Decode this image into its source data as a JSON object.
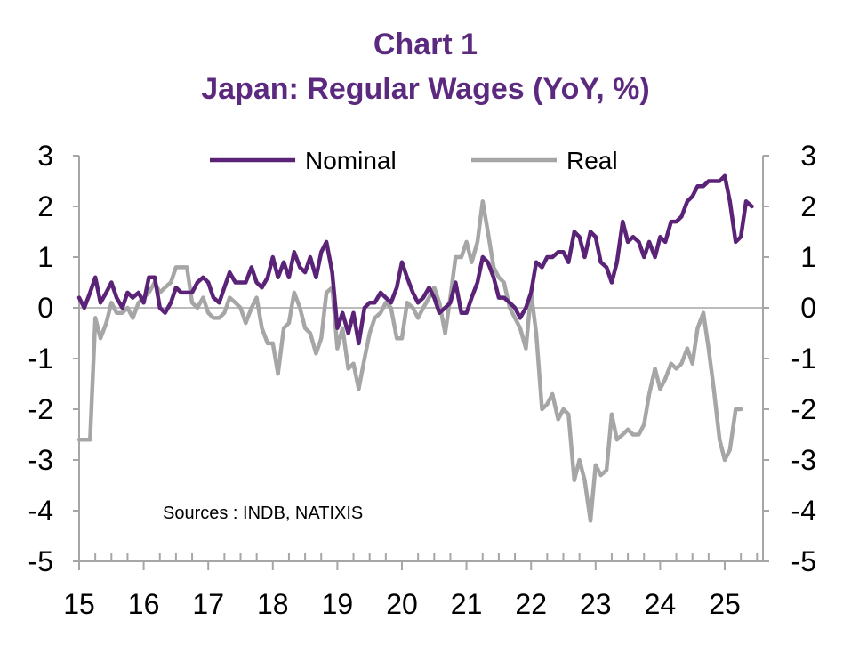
{
  "title": "Chart 1",
  "subtitle": "Japan: Regular Wages (YoY, %)",
  "source": "Sources : INDB, NATIXIS",
  "chart_data": {
    "type": "line",
    "title": "Chart 1",
    "subtitle": "Japan: Regular Wages (YoY, %)",
    "xlabel": "",
    "ylabel": "",
    "xlim": [
      2015.0,
      2025.5
    ],
    "ylim": [
      -5,
      3
    ],
    "yticks": [
      3,
      2,
      1,
      0,
      -1,
      -2,
      -3,
      -4,
      -5
    ],
    "xticks": [
      {
        "value": 2015,
        "label": "15"
      },
      {
        "value": 2016,
        "label": "16"
      },
      {
        "value": 2017,
        "label": "17"
      },
      {
        "value": 2018,
        "label": "18"
      },
      {
        "value": 2019,
        "label": "19"
      },
      {
        "value": 2020,
        "label": "20"
      },
      {
        "value": 2021,
        "label": "21"
      },
      {
        "value": 2022,
        "label": "22"
      },
      {
        "value": 2023,
        "label": "23"
      },
      {
        "value": 2024,
        "label": "24"
      },
      {
        "value": 2025,
        "label": "25"
      }
    ],
    "dual_y_axis": true,
    "grid": false,
    "legend_position": "top-center",
    "series": [
      {
        "name": "Nominal",
        "color": "#5b2378",
        "points": [
          [
            2015.0,
            0.2
          ],
          [
            2015.08,
            0.0
          ],
          [
            2015.17,
            0.3
          ],
          [
            2015.25,
            0.6
          ],
          [
            2015.33,
            0.1
          ],
          [
            2015.42,
            0.3
          ],
          [
            2015.5,
            0.5
          ],
          [
            2015.58,
            0.2
          ],
          [
            2015.67,
            0.0
          ],
          [
            2015.75,
            0.3
          ],
          [
            2015.83,
            0.2
          ],
          [
            2015.92,
            0.3
          ],
          [
            2016.0,
            0.1
          ],
          [
            2016.08,
            0.6
          ],
          [
            2016.17,
            0.6
          ],
          [
            2016.25,
            0.0
          ],
          [
            2016.33,
            -0.1
          ],
          [
            2016.42,
            0.1
          ],
          [
            2016.5,
            0.4
          ],
          [
            2016.58,
            0.3
          ],
          [
            2016.67,
            0.3
          ],
          [
            2016.75,
            0.3
          ],
          [
            2016.83,
            0.5
          ],
          [
            2016.92,
            0.6
          ],
          [
            2017.0,
            0.5
          ],
          [
            2017.08,
            0.2
          ],
          [
            2017.17,
            0.1
          ],
          [
            2017.25,
            0.4
          ],
          [
            2017.33,
            0.7
          ],
          [
            2017.42,
            0.5
          ],
          [
            2017.5,
            0.5
          ],
          [
            2017.58,
            0.5
          ],
          [
            2017.67,
            0.8
          ],
          [
            2017.75,
            0.5
          ],
          [
            2017.83,
            0.4
          ],
          [
            2017.92,
            0.6
          ],
          [
            2018.0,
            1.0
          ],
          [
            2018.08,
            0.6
          ],
          [
            2018.17,
            0.9
          ],
          [
            2018.25,
            0.6
          ],
          [
            2018.33,
            1.1
          ],
          [
            2018.42,
            0.8
          ],
          [
            2018.5,
            0.7
          ],
          [
            2018.58,
            1.0
          ],
          [
            2018.67,
            0.6
          ],
          [
            2018.75,
            1.1
          ],
          [
            2018.83,
            1.3
          ],
          [
            2018.92,
            0.7
          ],
          [
            2019.0,
            -0.4
          ],
          [
            2019.08,
            -0.1
          ],
          [
            2019.17,
            -0.5
          ],
          [
            2019.25,
            -0.1
          ],
          [
            2019.33,
            -0.7
          ],
          [
            2019.42,
            0.0
          ],
          [
            2019.5,
            0.1
          ],
          [
            2019.58,
            0.1
          ],
          [
            2019.67,
            0.3
          ],
          [
            2019.75,
            0.2
          ],
          [
            2019.83,
            0.1
          ],
          [
            2019.92,
            0.4
          ],
          [
            2020.0,
            0.9
          ],
          [
            2020.08,
            0.6
          ],
          [
            2020.17,
            0.3
          ],
          [
            2020.25,
            0.1
          ],
          [
            2020.33,
            0.2
          ],
          [
            2020.42,
            0.4
          ],
          [
            2020.5,
            0.2
          ],
          [
            2020.58,
            -0.1
          ],
          [
            2020.67,
            0.0
          ],
          [
            2020.75,
            0.1
          ],
          [
            2020.83,
            0.5
          ],
          [
            2020.92,
            -0.1
          ],
          [
            2021.0,
            -0.1
          ],
          [
            2021.08,
            0.2
          ],
          [
            2021.17,
            0.5
          ],
          [
            2021.25,
            1.0
          ],
          [
            2021.33,
            0.9
          ],
          [
            2021.42,
            0.6
          ],
          [
            2021.5,
            0.2
          ],
          [
            2021.58,
            0.2
          ],
          [
            2021.67,
            0.1
          ],
          [
            2021.75,
            0.0
          ],
          [
            2021.83,
            -0.2
          ],
          [
            2021.92,
            0.0
          ],
          [
            2022.0,
            0.3
          ],
          [
            2022.08,
            0.9
          ],
          [
            2022.17,
            0.8
          ],
          [
            2022.25,
            1.0
          ],
          [
            2022.33,
            1.0
          ],
          [
            2022.42,
            1.1
          ],
          [
            2022.5,
            1.1
          ],
          [
            2022.58,
            0.9
          ],
          [
            2022.67,
            1.5
          ],
          [
            2022.75,
            1.4
          ],
          [
            2022.83,
            1.0
          ],
          [
            2022.92,
            1.5
          ],
          [
            2023.0,
            1.4
          ],
          [
            2023.08,
            0.9
          ],
          [
            2023.17,
            0.8
          ],
          [
            2023.25,
            0.5
          ],
          [
            2023.33,
            0.9
          ],
          [
            2023.42,
            1.7
          ],
          [
            2023.5,
            1.3
          ],
          [
            2023.58,
            1.4
          ],
          [
            2023.67,
            1.3
          ],
          [
            2023.75,
            1.0
          ],
          [
            2023.83,
            1.3
          ],
          [
            2023.92,
            1.0
          ],
          [
            2024.0,
            1.4
          ],
          [
            2024.08,
            1.3
          ],
          [
            2024.17,
            1.7
          ],
          [
            2024.25,
            1.7
          ],
          [
            2024.33,
            1.8
          ],
          [
            2024.42,
            2.1
          ],
          [
            2024.5,
            2.2
          ],
          [
            2024.58,
            2.4
          ],
          [
            2024.67,
            2.4
          ],
          [
            2024.75,
            2.5
          ],
          [
            2024.83,
            2.5
          ],
          [
            2024.92,
            2.5
          ],
          [
            2025.0,
            2.6
          ],
          [
            2025.08,
            2.1
          ],
          [
            2025.17,
            1.3
          ],
          [
            2025.25,
            1.4
          ],
          [
            2025.33,
            2.1
          ],
          [
            2025.42,
            2.0
          ]
        ]
      },
      {
        "name": "Real",
        "color": "#a6a6a6",
        "points": [
          [
            2015.0,
            -2.6
          ],
          [
            2015.08,
            -2.6
          ],
          [
            2015.17,
            -2.6
          ],
          [
            2015.25,
            -0.2
          ],
          [
            2015.33,
            -0.6
          ],
          [
            2015.42,
            -0.3
          ],
          [
            2015.5,
            0.1
          ],
          [
            2015.58,
            -0.1
          ],
          [
            2015.67,
            -0.1
          ],
          [
            2015.75,
            0.0
          ],
          [
            2015.83,
            -0.2
          ],
          [
            2015.92,
            0.1
          ],
          [
            2016.0,
            0.2
          ],
          [
            2016.08,
            0.3
          ],
          [
            2016.17,
            0.5
          ],
          [
            2016.25,
            0.3
          ],
          [
            2016.33,
            0.4
          ],
          [
            2016.42,
            0.5
          ],
          [
            2016.5,
            0.8
          ],
          [
            2016.58,
            0.8
          ],
          [
            2016.67,
            0.8
          ],
          [
            2016.75,
            0.1
          ],
          [
            2016.83,
            0.0
          ],
          [
            2016.92,
            0.2
          ],
          [
            2017.0,
            -0.1
          ],
          [
            2017.08,
            -0.2
          ],
          [
            2017.17,
            -0.2
          ],
          [
            2017.25,
            -0.1
          ],
          [
            2017.33,
            0.2
          ],
          [
            2017.42,
            0.1
          ],
          [
            2017.5,
            0.0
          ],
          [
            2017.58,
            -0.3
          ],
          [
            2017.67,
            0.0
          ],
          [
            2017.75,
            0.2
          ],
          [
            2017.83,
            -0.4
          ],
          [
            2017.92,
            -0.7
          ],
          [
            2018.0,
            -0.7
          ],
          [
            2018.08,
            -1.3
          ],
          [
            2018.17,
            -0.4
          ],
          [
            2018.25,
            -0.3
          ],
          [
            2018.33,
            0.3
          ],
          [
            2018.42,
            0.0
          ],
          [
            2018.5,
            -0.4
          ],
          [
            2018.58,
            -0.5
          ],
          [
            2018.67,
            -0.9
          ],
          [
            2018.75,
            -0.6
          ],
          [
            2018.83,
            0.3
          ],
          [
            2018.92,
            0.4
          ],
          [
            2019.0,
            -0.8
          ],
          [
            2019.08,
            -0.4
          ],
          [
            2019.17,
            -1.2
          ],
          [
            2019.25,
            -1.1
          ],
          [
            2019.33,
            -1.6
          ],
          [
            2019.42,
            -1.0
          ],
          [
            2019.5,
            -0.5
          ],
          [
            2019.58,
            -0.2
          ],
          [
            2019.67,
            -0.1
          ],
          [
            2019.75,
            0.1
          ],
          [
            2019.83,
            0.0
          ],
          [
            2019.92,
            -0.6
          ],
          [
            2020.0,
            -0.6
          ],
          [
            2020.08,
            0.1
          ],
          [
            2020.17,
            0.0
          ],
          [
            2020.25,
            -0.2
          ],
          [
            2020.33,
            0.0
          ],
          [
            2020.42,
            0.2
          ],
          [
            2020.5,
            0.4
          ],
          [
            2020.58,
            0.1
          ],
          [
            2020.67,
            -0.5
          ],
          [
            2020.75,
            0.2
          ],
          [
            2020.83,
            1.0
          ],
          [
            2020.92,
            1.0
          ],
          [
            2021.0,
            1.3
          ],
          [
            2021.08,
            0.9
          ],
          [
            2021.17,
            1.3
          ],
          [
            2021.25,
            2.1
          ],
          [
            2021.33,
            1.5
          ],
          [
            2021.42,
            0.8
          ],
          [
            2021.5,
            0.6
          ],
          [
            2021.58,
            0.5
          ],
          [
            2021.67,
            0.0
          ],
          [
            2021.75,
            -0.2
          ],
          [
            2021.83,
            -0.4
          ],
          [
            2021.92,
            -0.8
          ],
          [
            2022.0,
            0.3
          ],
          [
            2022.08,
            -0.5
          ],
          [
            2022.17,
            -2.0
          ],
          [
            2022.25,
            -1.9
          ],
          [
            2022.33,
            -1.7
          ],
          [
            2022.42,
            -2.2
          ],
          [
            2022.5,
            -2.0
          ],
          [
            2022.58,
            -2.1
          ],
          [
            2022.67,
            -3.4
          ],
          [
            2022.75,
            -3.0
          ],
          [
            2022.83,
            -3.4
          ],
          [
            2022.92,
            -4.2
          ],
          [
            2023.0,
            -3.1
          ],
          [
            2023.08,
            -3.3
          ],
          [
            2023.17,
            -3.2
          ],
          [
            2023.25,
            -2.1
          ],
          [
            2023.33,
            -2.6
          ],
          [
            2023.42,
            -2.5
          ],
          [
            2023.5,
            -2.4
          ],
          [
            2023.58,
            -2.5
          ],
          [
            2023.67,
            -2.5
          ],
          [
            2023.75,
            -2.3
          ],
          [
            2023.83,
            -1.7
          ],
          [
            2023.92,
            -1.2
          ],
          [
            2024.0,
            -1.6
          ],
          [
            2024.08,
            -1.4
          ],
          [
            2024.17,
            -1.1
          ],
          [
            2024.25,
            -1.2
          ],
          [
            2024.33,
            -1.1
          ],
          [
            2024.42,
            -0.8
          ],
          [
            2024.5,
            -1.1
          ],
          [
            2024.58,
            -0.4
          ],
          [
            2024.67,
            -0.1
          ],
          [
            2024.75,
            -0.8
          ],
          [
            2024.83,
            -1.6
          ],
          [
            2024.92,
            -2.6
          ],
          [
            2025.0,
            -3.0
          ],
          [
            2025.08,
            -2.8
          ],
          [
            2025.17,
            -2.0
          ],
          [
            2025.25,
            -2.0
          ]
        ]
      }
    ]
  }
}
